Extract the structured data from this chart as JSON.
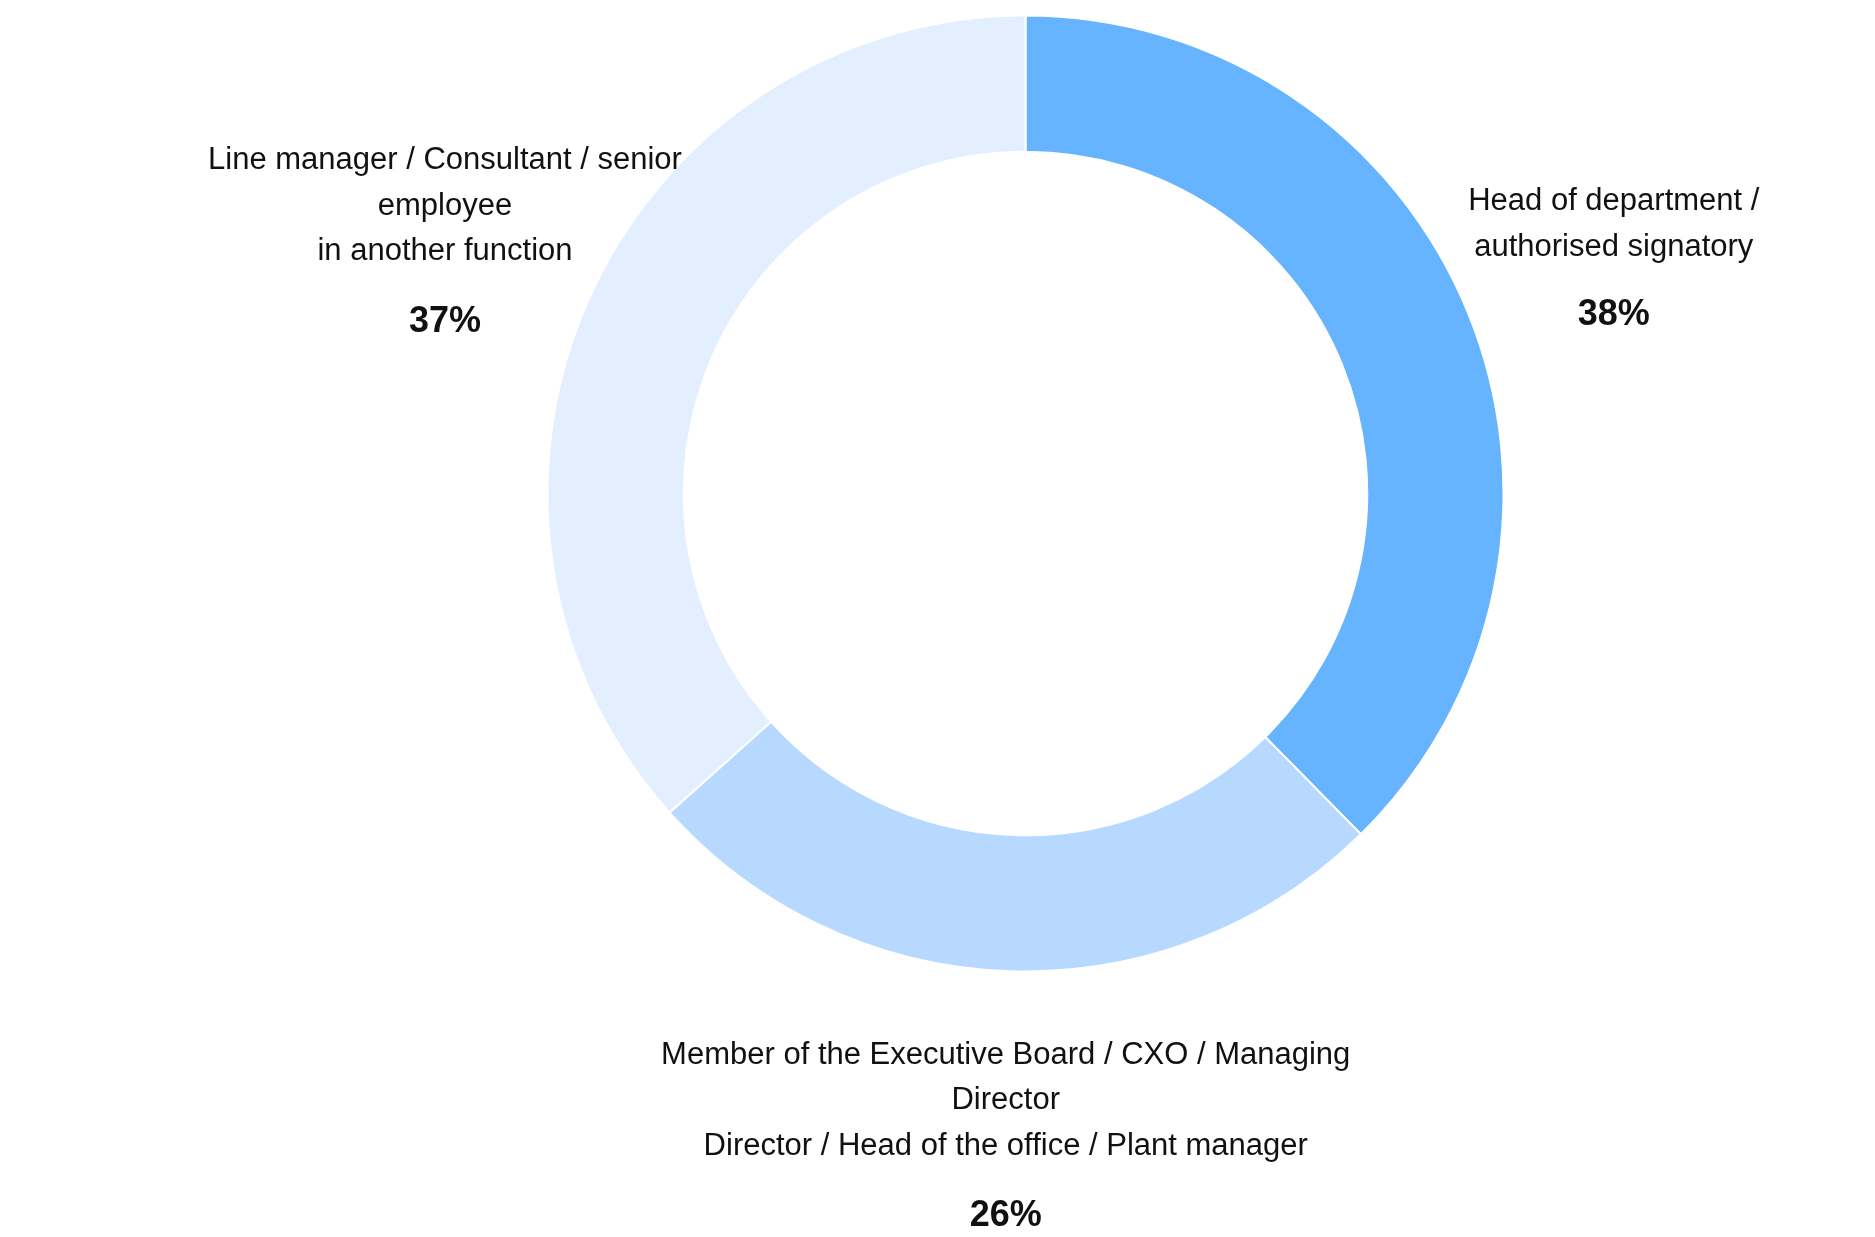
{
  "chart_data": {
    "type": "donut",
    "categories": [
      "Head of department /\nauthorised signatory",
      "Member of the Executive Board / CXO / Managing\nDirector\nDirector / Head of the office / Plant manager",
      "Line manager / Consultant / senior\nemployee\nin another function"
    ],
    "values": [
      38,
      26,
      37
    ],
    "colors": [
      "#66b3ff",
      "#b8d9ff",
      "#e3efff"
    ],
    "value_labels": [
      "38%",
      "26%",
      "37%"
    ]
  }
}
